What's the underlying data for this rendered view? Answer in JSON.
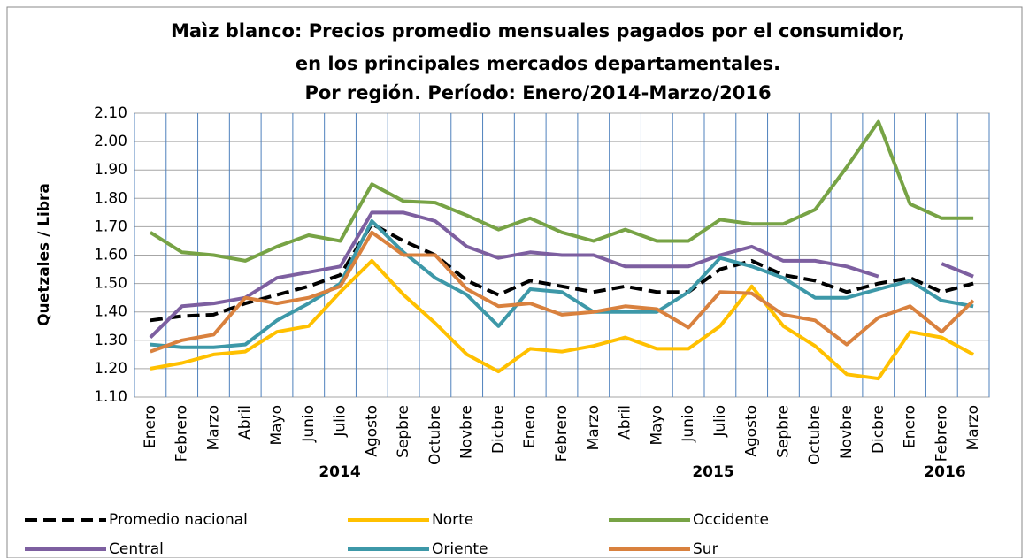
{
  "chart_data": {
    "type": "line",
    "title_lines": [
      "Maìz blanco: Precios promedio mensuales pagados por el consumidor,",
      "en los principales mercados departamentales.",
      "Por región. Período: Enero/2014-Marzo/2016"
    ],
    "y_label": "Quetzales / Libra",
    "categories": [
      "Enero",
      "Febrero",
      "Marzo",
      "Abril",
      "Mayo",
      "Junio",
      "Julio",
      "Agosto",
      "Sepbre",
      "Octubre",
      "Novbre",
      "Dicbre",
      "Enero",
      "Febrero",
      "Marzo",
      "Abril",
      "Mayo",
      "Junio",
      "Julio",
      "Agosto",
      "Sepbre",
      "Octubre",
      "Novbre",
      "Dicbre",
      "Enero",
      "Febrero",
      "Marzo"
    ],
    "years": [
      "2014",
      "2015",
      "2016"
    ],
    "ylim": [
      1.1,
      2.1
    ],
    "yticks": [
      {
        "value": 1.1,
        "label": "1.10"
      },
      {
        "value": 1.2,
        "label": "1.20"
      },
      {
        "value": 1.3,
        "label": "1.30"
      },
      {
        "value": 1.4,
        "label": "1.40"
      },
      {
        "value": 1.5,
        "label": "1.50"
      },
      {
        "value": 1.6,
        "label": "1.60"
      },
      {
        "value": 1.7,
        "label": "1.70"
      },
      {
        "value": 1.8,
        "label": "1.80"
      },
      {
        "value": 1.9,
        "label": "1.90"
      },
      {
        "value": 2.0,
        "label": "2.00"
      },
      {
        "value": 2.1,
        "label": "2.10"
      }
    ],
    "grid": true,
    "series": [
      {
        "name": "Promedio nacional",
        "color": "#000000",
        "dashed": true,
        "values": [
          1.37,
          1.385,
          1.39,
          1.43,
          1.46,
          1.49,
          1.53,
          1.71,
          1.65,
          1.6,
          1.51,
          1.46,
          1.51,
          1.49,
          1.47,
          1.49,
          1.47,
          1.47,
          1.55,
          1.58,
          1.53,
          1.51,
          1.47,
          1.5,
          1.52,
          1.47,
          1.5
        ]
      },
      {
        "name": "Norte",
        "color": "#ffc000",
        "dashed": false,
        "values": [
          1.2,
          1.22,
          1.25,
          1.26,
          1.33,
          1.35,
          1.47,
          1.58,
          1.46,
          1.36,
          1.25,
          1.19,
          1.27,
          1.26,
          1.28,
          1.31,
          1.27,
          1.27,
          1.35,
          1.49,
          1.35,
          1.28,
          1.18,
          1.165,
          1.33,
          1.31,
          1.25
        ]
      },
      {
        "name": "Occidente",
        "color": "#77a345",
        "dashed": false,
        "values": [
          1.68,
          1.61,
          1.6,
          1.58,
          1.63,
          1.67,
          1.65,
          1.85,
          1.79,
          1.785,
          1.74,
          1.69,
          1.73,
          1.68,
          1.65,
          1.69,
          1.65,
          1.65,
          1.725,
          1.71,
          1.71,
          1.76,
          1.91,
          2.07,
          1.78,
          1.73,
          1.73
        ]
      },
      {
        "name": "Central",
        "color": "#7d5fa0",
        "dashed": false,
        "values": [
          1.31,
          1.42,
          1.43,
          1.45,
          1.52,
          1.54,
          1.56,
          1.75,
          1.75,
          1.72,
          1.63,
          1.59,
          1.61,
          1.6,
          1.6,
          1.56,
          1.56,
          1.56,
          1.6,
          1.63,
          1.58,
          1.58,
          1.56,
          1.525,
          null,
          1.57,
          1.525
        ]
      },
      {
        "name": "Oriente",
        "color": "#3d98a8",
        "dashed": false,
        "values": [
          1.285,
          1.275,
          1.275,
          1.285,
          1.37,
          1.43,
          1.5,
          1.72,
          1.61,
          1.52,
          1.46,
          1.35,
          1.48,
          1.47,
          1.4,
          1.4,
          1.4,
          1.47,
          1.59,
          1.56,
          1.52,
          1.45,
          1.45,
          1.48,
          1.51,
          1.44,
          1.42
        ]
      },
      {
        "name": "Sur",
        "color": "#d9813e",
        "dashed": false,
        "values": [
          1.26,
          1.3,
          1.32,
          1.45,
          1.43,
          1.45,
          1.49,
          1.68,
          1.6,
          1.6,
          1.48,
          1.42,
          1.43,
          1.39,
          1.4,
          1.42,
          1.41,
          1.345,
          1.47,
          1.465,
          1.39,
          1.37,
          1.285,
          1.38,
          1.42,
          1.33,
          1.44
        ]
      }
    ]
  }
}
